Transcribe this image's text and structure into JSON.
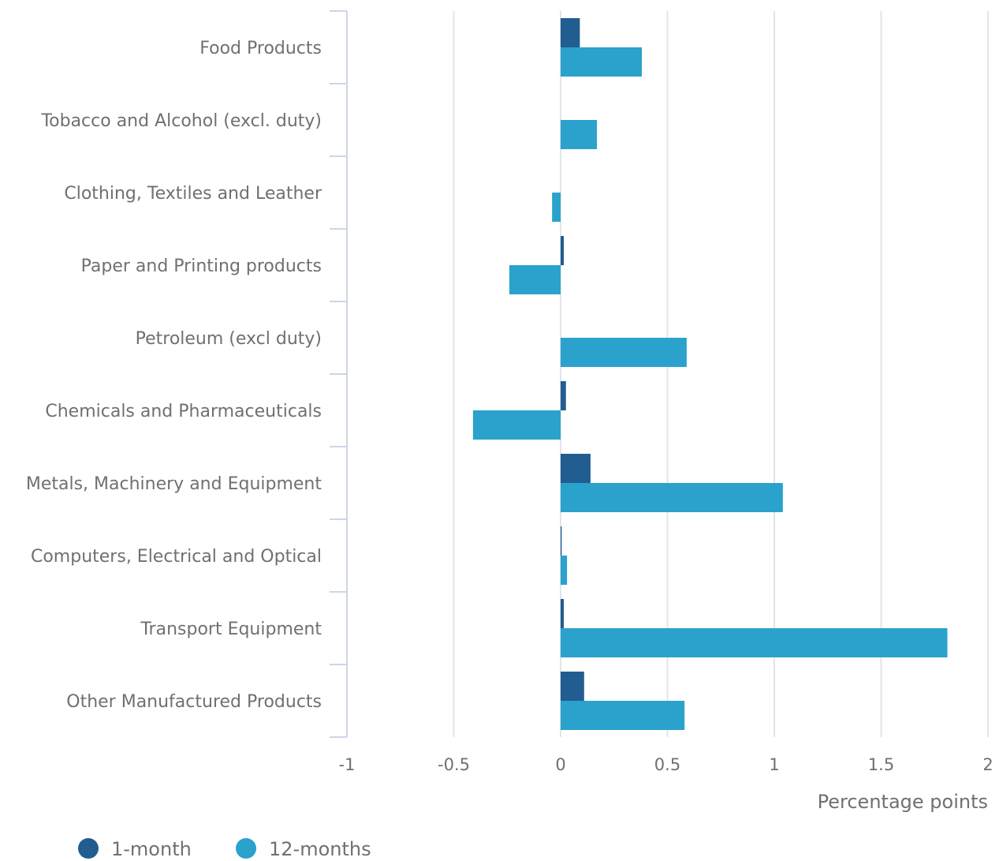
{
  "chart_data": {
    "type": "bar",
    "orientation": "horizontal",
    "categories": [
      "Food Products",
      "Tobacco and Alcohol (excl. duty)",
      "Clothing, Textiles and Leather",
      "Paper and Printing products",
      "Petroleum (excl duty)",
      "Chemicals and Pharmaceuticals",
      "Metals, Machinery and Equipment",
      "Computers, Electrical and Optical",
      "Transport Equipment",
      "Other Manufactured Products"
    ],
    "series": [
      {
        "name": "1-month",
        "color": "#215d91",
        "values": [
          0.09,
          0.0,
          0.0,
          0.015,
          0.0,
          0.025,
          0.14,
          0.005,
          0.015,
          0.11
        ]
      },
      {
        "name": "12-months",
        "color": "#2aa2cc",
        "values": [
          0.38,
          0.17,
          -0.04,
          -0.24,
          0.59,
          -0.41,
          1.04,
          0.03,
          1.81,
          0.58
        ]
      }
    ],
    "xlim": [
      -1,
      2
    ],
    "xticks": [
      "-1",
      "-0.5",
      "0",
      "0.5",
      "1",
      "1.5",
      "2"
    ],
    "xlabel": "Percentage points",
    "grid": true,
    "legend_position": "bottom-left"
  }
}
